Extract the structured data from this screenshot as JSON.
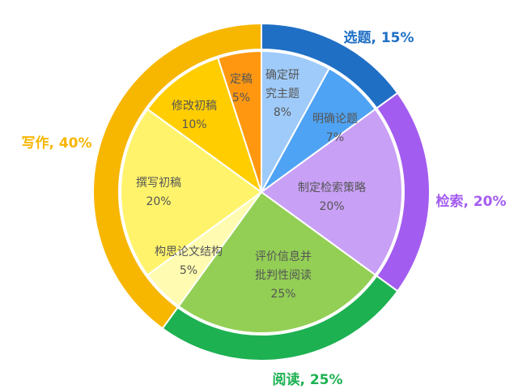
{
  "chart_data": {
    "type": "pie",
    "outer": [
      {
        "label": "选题, 15%",
        "value": 15,
        "color": "#1F6FC5"
      },
      {
        "label": "检索, 20%",
        "value": 20,
        "color": "#A35CF0"
      },
      {
        "label": "阅读, 25%",
        "value": 25,
        "color": "#1DB152"
      },
      {
        "label": "写作, 40%",
        "value": 40,
        "color": "#F7B600"
      }
    ],
    "inner": [
      {
        "lines": [
          "确定研",
          "究主题"
        ],
        "pct": "8%",
        "value": 8,
        "color": "#9FCBFA"
      },
      {
        "lines": [
          "明确论题"
        ],
        "pct": "7%",
        "value": 7,
        "color": "#4FA3F4"
      },
      {
        "lines": [
          "制定检索策略"
        ],
        "pct": "20%",
        "value": 20,
        "color": "#C8A0F5"
      },
      {
        "lines": [
          "评价信息并",
          "批判性阅读"
        ],
        "pct": "25%",
        "value": 25,
        "color": "#93CF55"
      },
      {
        "lines": [
          "构思论文结构"
        ],
        "pct": "5%",
        "value": 5,
        "color": "#FFFBB0"
      },
      {
        "lines": [
          "撰写初稿"
        ],
        "pct": "20%",
        "value": 20,
        "color": "#FFF36B"
      },
      {
        "lines": [
          "修改初稿"
        ],
        "pct": "10%",
        "value": 10,
        "color": "#FFCD00"
      },
      {
        "lines": [
          "定稿"
        ],
        "pct": "5%",
        "value": 5,
        "color": "#FF9810"
      }
    ]
  }
}
